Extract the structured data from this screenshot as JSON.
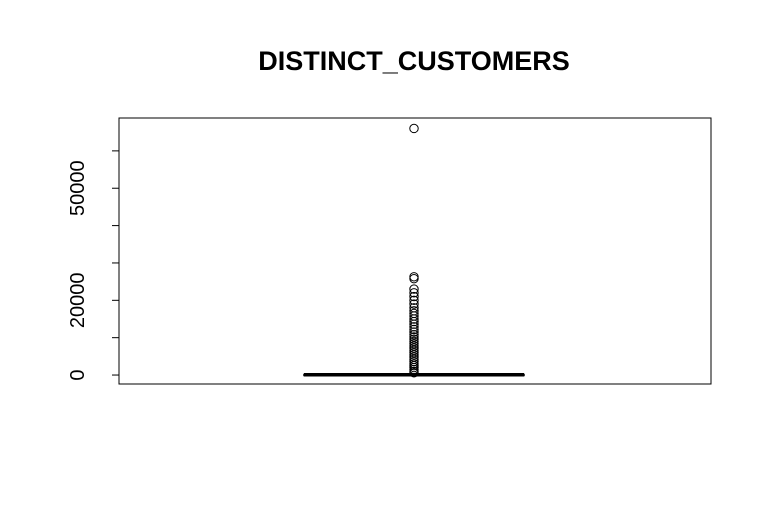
{
  "chart_data": {
    "type": "boxplot",
    "title": "DISTINCT_CUSTOMERS",
    "xlabel": "",
    "ylabel": "",
    "ylim": [
      -2400,
      68800
    ],
    "yticks": [
      0,
      10000,
      20000,
      30000,
      40000,
      50000,
      60000
    ],
    "ytick_labels": [
      "0",
      "",
      "20000",
      "",
      "",
      "50000",
      ""
    ],
    "box": {
      "min": 0,
      "q1": 20,
      "median": 60,
      "q3": 150,
      "whisker_high": 320
    },
    "outliers": [
      66000,
      26300,
      25800,
      23000,
      22000,
      21000,
      20000,
      19000,
      18000,
      17200,
      16500,
      15800,
      15000,
      14300,
      13600,
      12900,
      12200,
      11500,
      10800,
      10200,
      9600,
      9000,
      8400,
      7800,
      7200,
      6600,
      6000,
      5400,
      4800,
      4200,
      3600,
      3000,
      2500,
      2000,
      1500,
      1000,
      600
    ],
    "grid": false,
    "legend": "none",
    "colors": {
      "stroke": "#000000",
      "background": "#ffffff"
    }
  }
}
